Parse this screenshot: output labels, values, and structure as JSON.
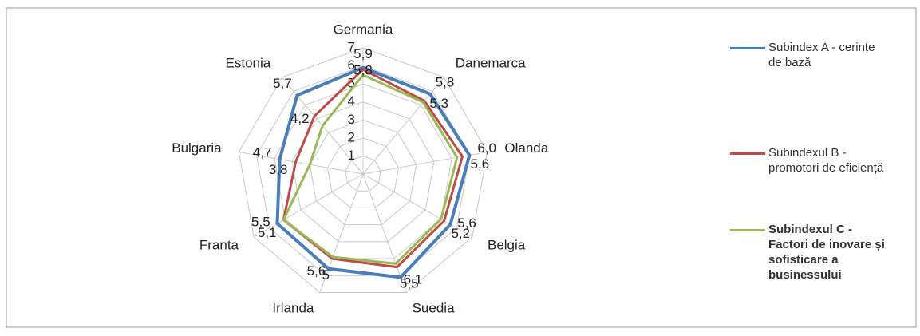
{
  "chart_data": {
    "type": "radar",
    "categories": [
      "Germania",
      "Danemarca",
      "Olanda",
      "Belgia",
      "Suedia",
      "Irlanda",
      "Franta",
      "Bulgaria",
      "Estonia"
    ],
    "ylim": [
      0,
      7
    ],
    "yticks": [
      1,
      2,
      3,
      4,
      5,
      6,
      7
    ],
    "grid": true,
    "legend": "right",
    "series": [
      {
        "name": "Subindex A - cerințe de bază",
        "color": "#4a7ebb",
        "values": [
          5.9,
          5.8,
          6.0,
          5.6,
          6.1,
          5.6,
          5.5,
          4.7,
          5.7
        ],
        "value_labels": [
          "5,9",
          "5,8",
          "6,0",
          "5,6",
          "6,1",
          "5,6",
          "5,5",
          "4,7",
          "5,7"
        ]
      },
      {
        "name": "Subindexul B - promotori de eficiență",
        "color": "#be4b48",
        "values": [
          5.8,
          5.3,
          5.6,
          5.2,
          5.5,
          5,
          5.1,
          3.8,
          4.2
        ],
        "value_labels": [
          "5,8",
          "5,3",
          "5,6",
          "5,2",
          "5,5",
          "5",
          "5,1",
          "3,8",
          "4,2"
        ]
      },
      {
        "name": "Subindexul C - Factori de inovare și sofisticare a businessului",
        "color": "#98b954",
        "values": [
          5.5,
          5.2,
          5.3,
          5.0,
          5.3,
          4.9,
          5.1,
          3.0,
          3.5
        ]
      }
    ]
  }
}
